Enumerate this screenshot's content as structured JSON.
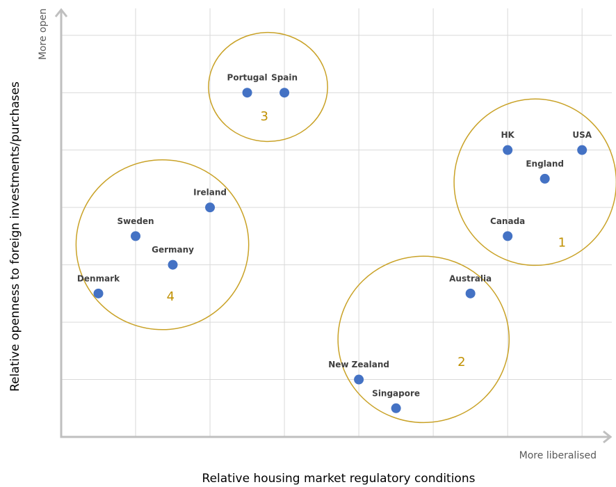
{
  "chart_data": {
    "type": "scatter",
    "x_label": "Relative housing market regulatory conditions",
    "y_label": "Relative openness to foreign investments/purchases",
    "x_end_label": "More liberalised",
    "y_end_label": "More open",
    "xlim": [
      0,
      7.4
    ],
    "ylim": [
      0,
      7.47
    ],
    "xticks": [
      1,
      2,
      3,
      4,
      5,
      6,
      7
    ],
    "yticks": [
      1,
      2,
      3,
      4,
      5,
      6,
      7
    ],
    "tick_labels": false,
    "grid": true,
    "color": "#4472c4",
    "cluster_color": "#c9a227",
    "points": [
      {
        "label": "Portugal",
        "x": 2.5,
        "y": 6
      },
      {
        "label": "Spain",
        "x": 3,
        "y": 6
      },
      {
        "label": "HK",
        "x": 6,
        "y": 5
      },
      {
        "label": "USA",
        "x": 7,
        "y": 5
      },
      {
        "label": "England",
        "x": 6.5,
        "y": 4.5
      },
      {
        "label": "Canada",
        "x": 6,
        "y": 3.5
      },
      {
        "label": "Ireland",
        "x": 2,
        "y": 4
      },
      {
        "label": "Sweden",
        "x": 1,
        "y": 3.5
      },
      {
        "label": "Germany",
        "x": 1.5,
        "y": 3
      },
      {
        "label": "Denmark",
        "x": 0.5,
        "y": 2.5
      },
      {
        "label": "Australia",
        "x": 5.5,
        "y": 2.5
      },
      {
        "label": "New Zealand",
        "x": 4,
        "y": 1
      },
      {
        "label": "Singapore",
        "x": 4.5,
        "y": 0.5
      }
    ],
    "clusters": [
      {
        "label": "1",
        "cx": 6.37,
        "cy": 4.44,
        "rx": 1.09,
        "ry": 1.45,
        "label_x": 6.73,
        "label_y": 3.38
      },
      {
        "label": "2",
        "cx": 4.87,
        "cy": 1.7,
        "rx": 1.15,
        "ry": 1.45,
        "label_x": 5.38,
        "label_y": 1.3
      },
      {
        "label": "3",
        "cx": 2.78,
        "cy": 6.1,
        "rx": 0.8,
        "ry": 0.95,
        "label_x": 2.73,
        "label_y": 5.58
      },
      {
        "label": "4",
        "cx": 1.36,
        "cy": 3.35,
        "rx": 1.16,
        "ry": 1.48,
        "label_x": 1.47,
        "label_y": 2.44
      }
    ]
  }
}
